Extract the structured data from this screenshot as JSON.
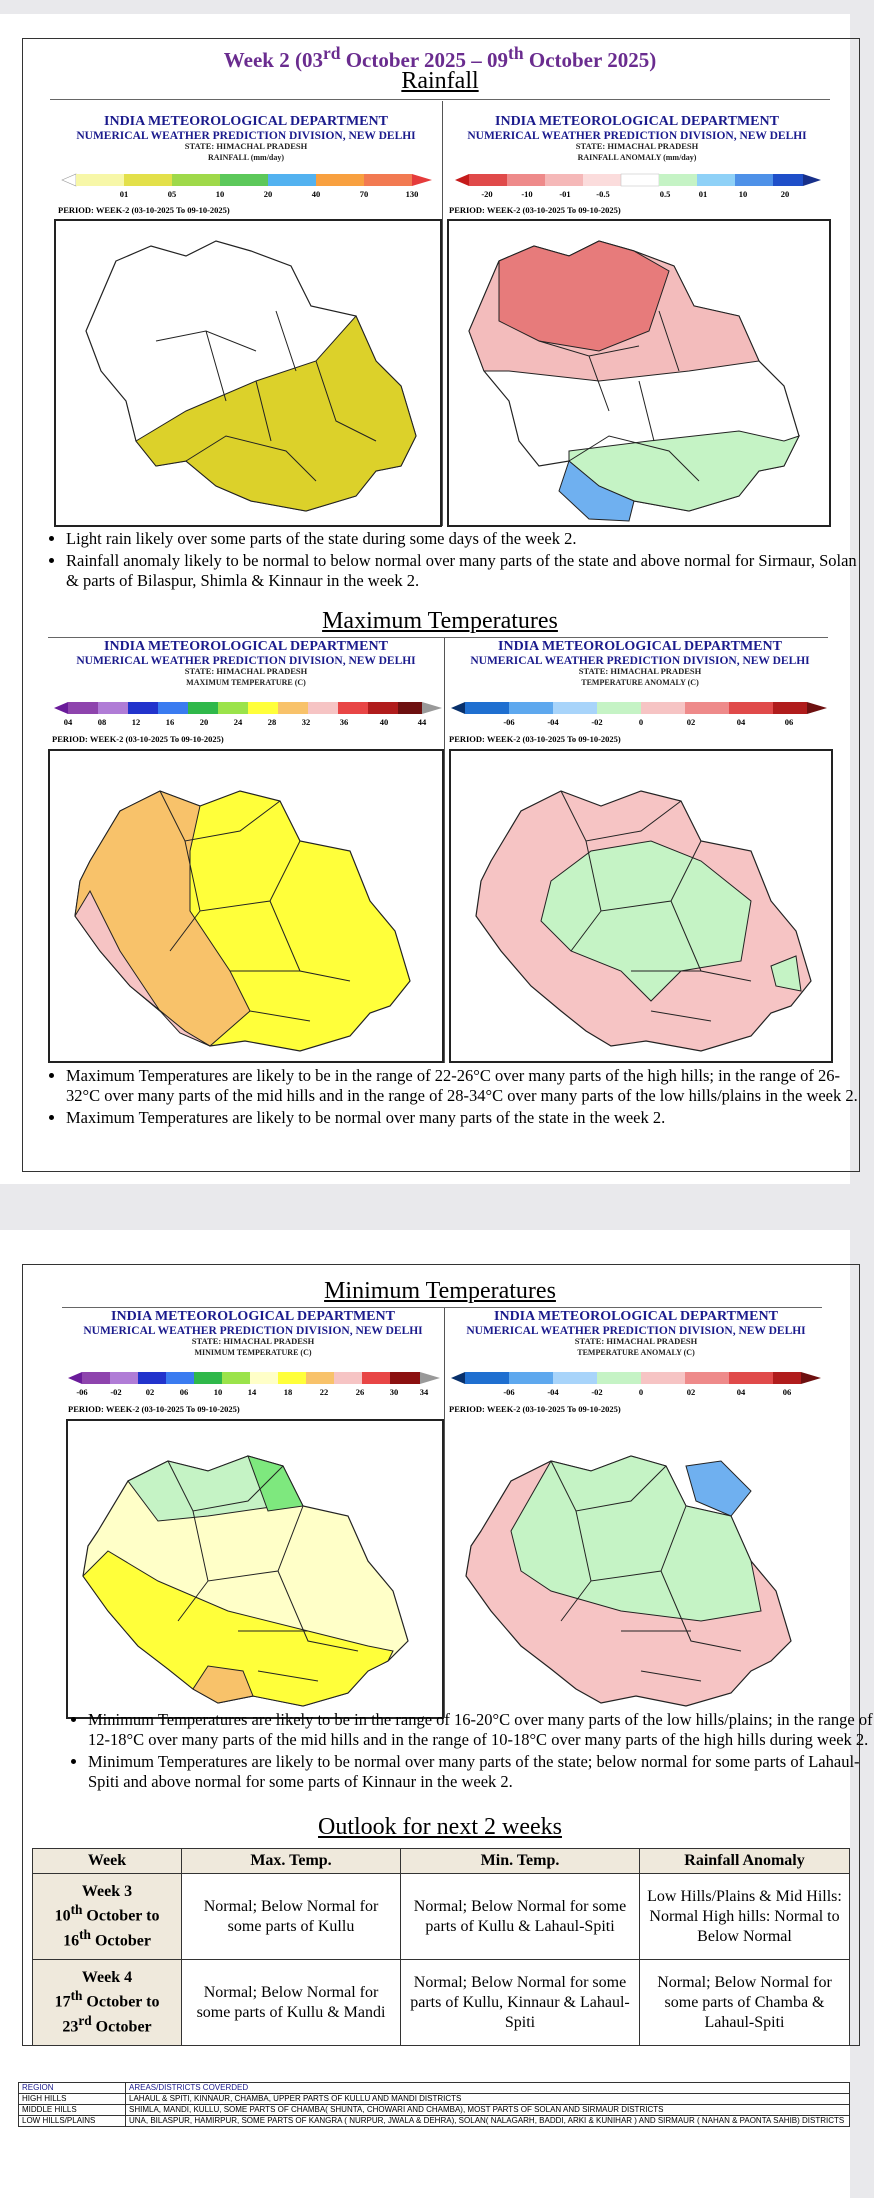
{
  "week_title": {
    "pre": "Week 2 (03",
    "sup1": "rd",
    "mid": " October 2025 – 09",
    "sup2": "th",
    "post": " October 2025)"
  },
  "colors": {
    "title": "#6a2c8f",
    "imd_blue": "#1a1a8c",
    "rain": "#dcd12a",
    "anom_red": "#e77b7b",
    "anom_pink": "#f3bcbc",
    "anom_green": "#c5f3c5",
    "anom_blue": "#6fb0f0",
    "temp_yellow": "#ffff3a",
    "temp_orange": "#f8c26a",
    "temp_pink": "#f6c4c4"
  },
  "imd": {
    "org": "INDIA METEOROLOGICAL DEPARTMENT",
    "division": "NUMERICAL WEATHER PREDICTION DIVISION, NEW DELHI",
    "state": "STATE: HIMACHAL PRADESH",
    "period": "PERIOD: WEEK-2 (03-10-2025 To 09-10-2025)"
  },
  "rainfall": {
    "heading": "Rainfall",
    "left_legend": "RAINFALL (mm/day)",
    "left_ticks": [
      "01",
      "05",
      "10",
      "20",
      "40",
      "70",
      "130"
    ],
    "right_legend": "RAINFALL ANOMALY (mm/day)",
    "right_ticks": [
      "-20",
      "-10",
      "-01",
      "-0.5",
      "0.5",
      "01",
      "10",
      "20"
    ],
    "bullets": [
      "Light rain likely over some parts of the state during some days of the week 2.",
      "Rainfall anomaly likely to be normal to below normal over many parts of the state and above normal for Sirmaur, Solan & parts of Bilaspur, Shimla & Kinnaur in the week 2."
    ]
  },
  "maxtemp": {
    "heading": "Maximum Temperatures",
    "left_legend": "MAXIMUM TEMPERATURE (C)",
    "left_ticks": [
      "04",
      "08",
      "12",
      "16",
      "20",
      "24",
      "28",
      "32",
      "36",
      "40",
      "44"
    ],
    "right_legend": "TEMPERATURE ANOMALY (C)",
    "right_ticks": [
      "-06",
      "-04",
      "-02",
      "0",
      "02",
      "04",
      "06"
    ],
    "bullets": [
      "Maximum Temperatures are likely to be in the range of 22-26°C over many parts of the high hills; in the range of 26-32°C over many parts of the mid hills and in the range of 28-34°C over many parts of the low hills/plains in the week 2.",
      "Maximum Temperatures are likely to be normal over many parts of the state in the week 2."
    ]
  },
  "mintemp": {
    "heading": "Minimum Temperatures",
    "left_legend": "MINIMUM TEMPERATURE (C)",
    "left_ticks": [
      "-06",
      "-02",
      "02",
      "06",
      "10",
      "14",
      "18",
      "22",
      "26",
      "30",
      "34"
    ],
    "right_legend": "TEMPERATURE ANOMALY (C)",
    "right_ticks": [
      "-06",
      "-04",
      "-02",
      "0",
      "02",
      "04",
      "06"
    ],
    "bullets": [
      "Minimum Temperatures are likely to be in the range of 16-20°C over many parts of the low hills/plains; in the range of 12-18°C over many parts of the mid hills and in the range of 10-18°C over many parts of the high hills during week 2.",
      "Minimum Temperatures are likely to be normal over many parts of the state; below normal for some parts of Lahaul-Spiti and above normal for some parts of Kinnaur in the week 2."
    ]
  },
  "outlook": {
    "heading": "Outlook for next 2 weeks",
    "cols": [
      "Week",
      "Max. Temp.",
      "Min. Temp.",
      "Rainfall Anomaly"
    ],
    "rows": [
      {
        "week": "Week 3",
        "d1": "10",
        "s1": "th",
        "m1": " October to",
        "d2": "16",
        "s2": "th",
        "m2": " October",
        "max": "Normal; Below Normal for some parts of Kullu",
        "min": "Normal; Below Normal for some parts of Kullu & Lahaul-Spiti",
        "rain": "Low Hills/Plains & Mid Hills: Normal High hills: Normal to Below Normal"
      },
      {
        "week": "Week 4",
        "d1": "17",
        "s1": "th",
        "m1": " October to",
        "d2": "23",
        "s2": "rd",
        "m2": " October",
        "max": "Normal; Below Normal for some parts of Kullu & Mandi",
        "min": "Normal; Below Normal for some parts of Kullu, Kinnaur & Lahaul-Spiti",
        "rain": "Normal; Below Normal for some parts of Chamba & Lahaul-Spiti"
      }
    ]
  },
  "regions": [
    {
      "r": "REGION",
      "a": "AREAS/DISTRICTS COVERDED"
    },
    {
      "r": "HIGH HILLS",
      "a": "LAHAUL & SPITI, KINNAUR, CHAMBA, UPPER PARTS OF KULLU AND MANDI DISTRICTS"
    },
    {
      "r": "MIDDLE HILLS",
      "a": "SHIMLA, MANDI, KULLU, SOME PARTS OF CHAMBA( SHUNTA, CHOWARI AND CHAMBA), MOST PARTS OF SOLAN AND SIRMAUR DISTRICTS"
    },
    {
      "r": "LOW HILLS/PLAINS",
      "a": "UNA, BILASPUR, HAMIRPUR, SOME PARTS OF KANGRA ( NURPUR, JWALA & DEHRA), SOLAN( NALAGARH, BADDI, ARKI & KUNIHAR ) AND SIRMAUR ( NAHAN & PAONTA SAHIB) DISTRICTS"
    }
  ]
}
